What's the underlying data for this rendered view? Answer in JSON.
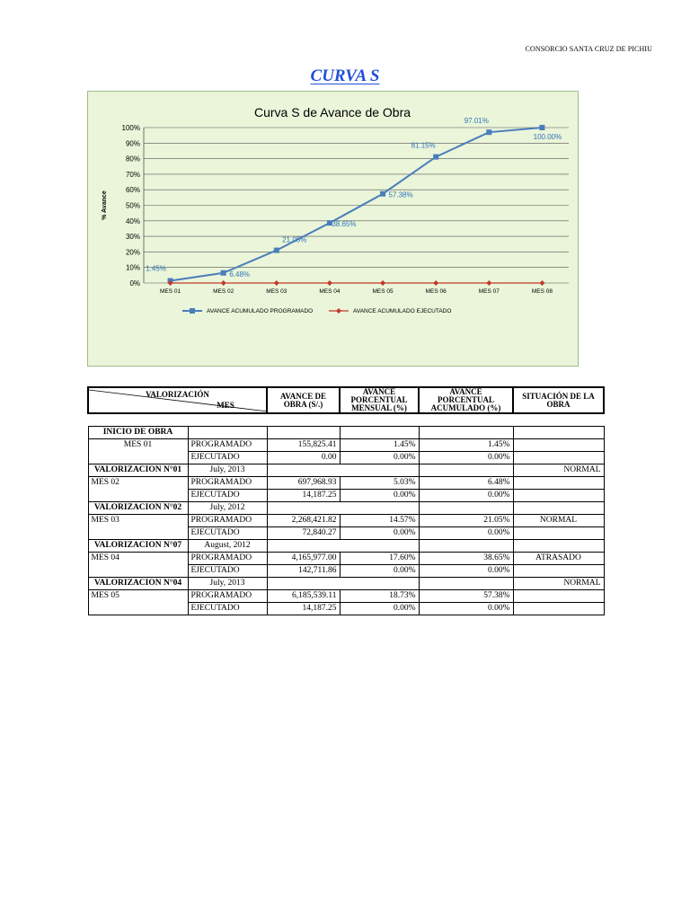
{
  "header": {
    "company": "CONSORCIO SANTA CRUZ DE PICHIU"
  },
  "doc_title": "CURVA S",
  "chart_data": {
    "type": "line",
    "title": "Curva S de Avance de Obra",
    "ylabel": "% Avance",
    "xlabel": "",
    "categories": [
      "MES 01",
      "MES 02",
      "MES 03",
      "MES 04",
      "MES 05",
      "MES 06",
      "MES 07",
      "MES 08"
    ],
    "y_ticks": [
      "0%",
      "10%",
      "20%",
      "30%",
      "40%",
      "50%",
      "60%",
      "70%",
      "80%",
      "90%",
      "100%"
    ],
    "ylim": [
      0,
      100
    ],
    "grid": true,
    "legend_position": "bottom",
    "series": [
      {
        "name": "AVANCE ACUMULADO PROGRAMADO",
        "color": "#4a7ebb",
        "marker": "square",
        "values": [
          1.45,
          6.48,
          21.05,
          38.65,
          57.38,
          81.15,
          97.01,
          100.0
        ],
        "labels": [
          "1.45%",
          "6.48%",
          "21.05%",
          "38.65%",
          "57.38%",
          "81.15%",
          "97.01%",
          "100.00%"
        ]
      },
      {
        "name": "AVANCE ACUMULADO EJECUTADO",
        "color": "#c0392b",
        "marker": "diamond",
        "values": [
          0,
          0,
          0,
          0,
          0,
          0,
          0,
          0
        ]
      }
    ]
  },
  "table": {
    "headers": {
      "valorizacion": "VALORIZACIÓN",
      "mes": "MES",
      "avance_obra": "AVANCE DE OBRA (S/.)",
      "avance_mensual": "AVANCE PORCENTUAL MENSUAL (%)",
      "avance_acumulado": "AVANCE PORCENTUAL ACUMULADO (%)",
      "situacion": "SITUACIÓN DE LA OBRA"
    },
    "inicio": {
      "label": "INICIO DE OBRA",
      "mes": "MES 01",
      "rows": [
        {
          "tipo": "PROGRAMADO",
          "monto": "155,825.41",
          "mensual": "1.45%",
          "acumulado": "1.45%"
        },
        {
          "tipo": "EJECUTADO",
          "monto": "0.00",
          "mensual": "0.00%",
          "acumulado": "0.00%"
        }
      ]
    },
    "blocks": [
      {
        "label": "VALORIZACION N°01",
        "fecha": "July, 2013",
        "situacion": "NORMAL",
        "mes": "MES 02",
        "rows": [
          {
            "tipo": "PROGRAMADO",
            "monto": "697,968.93",
            "mensual": "5.03%",
            "acumulado": "6.48%"
          },
          {
            "tipo": "EJECUTADO",
            "monto": "14,187.25",
            "mensual": "0.00%",
            "acumulado": "0.00%"
          }
        ]
      },
      {
        "label": "VALORIZACION N°02",
        "fecha": "July, 2012",
        "situacion": "",
        "mes": "MES 03",
        "rows": [
          {
            "tipo": "PROGRAMADO",
            "monto": "2,268,421.82",
            "mensual": "14.57%",
            "acumulado": "21.05%",
            "situacion": "NORMAL"
          },
          {
            "tipo": "EJECUTADO",
            "monto": "72,840.27",
            "mensual": "0.00%",
            "acumulado": "0.00%"
          }
        ]
      },
      {
        "label": "VALORIZACION N°07",
        "fecha": "August, 2012",
        "situacion": "",
        "mes": "MES 04",
        "rows": [
          {
            "tipo": "PROGRAMADO",
            "monto": "4,165,977.00",
            "mensual": "17.60%",
            "acumulado": "38.65%",
            "situacion": "ATRASADO"
          },
          {
            "tipo": "EJECUTADO",
            "monto": "142,711.86",
            "mensual": "0.00%",
            "acumulado": "0.00%"
          }
        ]
      },
      {
        "label": "VALORIZACION N°04",
        "fecha": "July, 2013",
        "situacion": "NORMAL",
        "mes": "MES 05",
        "rows": [
          {
            "tipo": "PROGRAMADO",
            "monto": "6,185,539.11",
            "mensual": "18.73%",
            "acumulado": "57.38%"
          },
          {
            "tipo": "EJECUTADO",
            "monto": "14,187.25",
            "mensual": "0.00%",
            "acumulado": "0.00%"
          }
        ]
      }
    ]
  }
}
